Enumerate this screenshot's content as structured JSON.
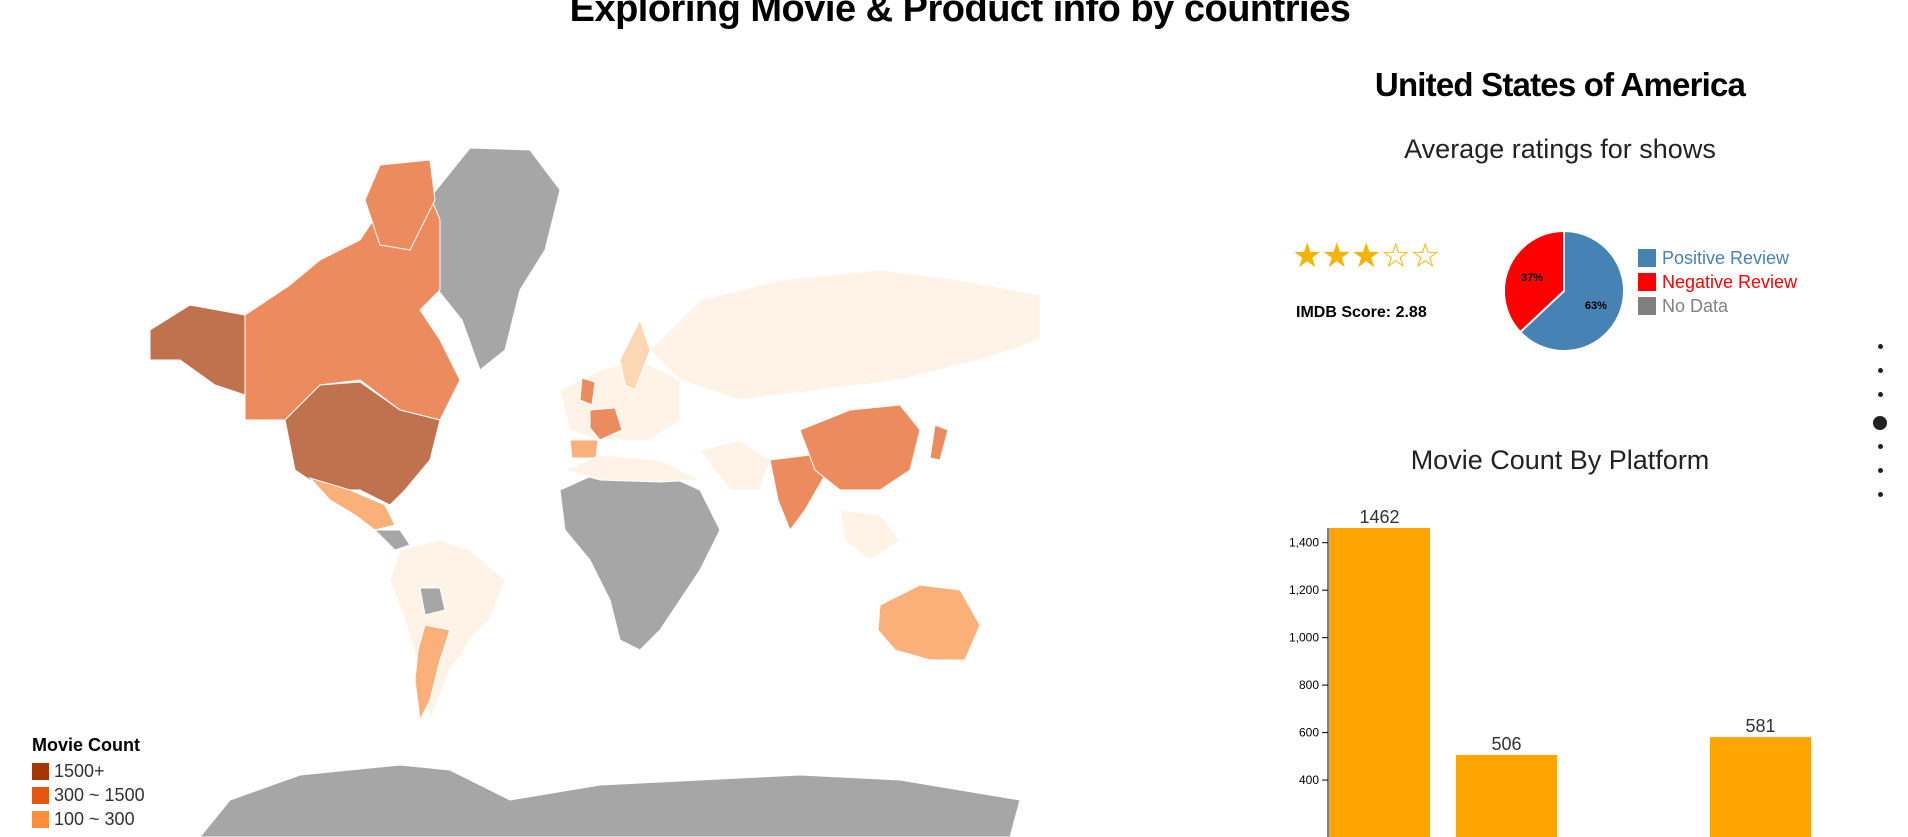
{
  "header": {
    "title": "Exploring Movie & Product info by countries"
  },
  "map": {
    "legend": {
      "title": "Movie Count",
      "items": [
        {
          "label": "1500+",
          "color": "#a63603"
        },
        {
          "label": "300 ~ 1500",
          "color": "#e6550d"
        },
        {
          "label": "100 ~ 300",
          "color": "#fd8d3c"
        }
      ]
    },
    "colors": {
      "highest": "#c0724f",
      "high": "#ec8b5e",
      "medium": "#fbb07a",
      "low": "#fdd6b2",
      "lowest": "#fff3e8",
      "no_data": "#a6a6a6"
    }
  },
  "detail": {
    "country": "United States of America",
    "ratings_title": "Average ratings for shows",
    "rating_stars": 3,
    "rating_max": 5,
    "imdb_label": "IMDB Score: 2.88",
    "pie": {
      "slices": [
        {
          "name": "Positive Review",
          "value": 63,
          "label": "63%",
          "color": "#4682b4"
        },
        {
          "name": "Negative Review",
          "value": 37,
          "label": "37%",
          "color": "#ff0000"
        }
      ],
      "legend": [
        {
          "label": "Positive Review",
          "color": "#4682b4"
        },
        {
          "label": "Negative Review",
          "color": "#ff0000"
        },
        {
          "label": "No Data",
          "color": "#808080"
        }
      ]
    },
    "bar_title": "Movie Count By Platform"
  },
  "chart_data": {
    "type": "bar",
    "values": [
      1462,
      506,
      0,
      581
    ],
    "data_labels": [
      "1462",
      "506",
      "",
      "581"
    ],
    "yticks": [
      "400",
      "600",
      "800",
      "1,000",
      "1,200",
      "1,400"
    ],
    "ylim": [
      0,
      1462
    ],
    "color": "#ffa500"
  },
  "nav": {
    "dots": 7,
    "active": 3
  }
}
